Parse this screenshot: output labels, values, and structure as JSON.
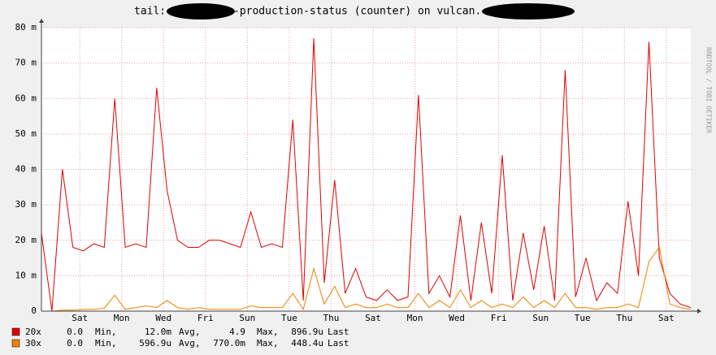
{
  "chart_data": {
    "type": "line",
    "title": [
      "tail:",
      "-production-status (counter) on vulcan."
    ],
    "watermark": "RRDTOOL / TOBI OETIKER",
    "x": [
      0,
      0.5,
      1,
      1.5,
      2,
      2.5,
      3,
      3.5,
      4,
      4.5,
      5,
      5.5,
      6,
      6.5,
      7,
      7.5,
      8,
      8.5,
      9,
      9.5,
      10,
      10.5,
      11,
      11.5,
      12,
      12.5,
      13,
      13.5,
      14,
      14.5,
      15,
      15.5,
      16,
      16.5,
      17,
      17.5,
      18,
      18.5,
      19,
      19.5,
      20,
      20.5,
      21,
      21.5,
      22,
      22.5,
      23,
      23.5,
      24,
      24.5,
      25,
      25.5,
      26,
      26.5,
      27,
      27.5,
      28,
      28.5,
      29,
      29.5,
      30,
      30.5,
      31
    ],
    "xlim": [
      0,
      31
    ],
    "xticks": [
      {
        "value": 1.83,
        "label": "Sat"
      },
      {
        "value": 3.83,
        "label": "Mon"
      },
      {
        "value": 5.83,
        "label": "Wed"
      },
      {
        "value": 7.83,
        "label": "Fri"
      },
      {
        "value": 9.83,
        "label": "Sun"
      },
      {
        "value": 11.83,
        "label": "Tue"
      },
      {
        "value": 13.83,
        "label": "Thu"
      },
      {
        "value": 15.83,
        "label": "Sat"
      },
      {
        "value": 17.83,
        "label": "Mon"
      },
      {
        "value": 19.83,
        "label": "Wed"
      },
      {
        "value": 21.83,
        "label": "Fri"
      },
      {
        "value": 23.83,
        "label": "Sun"
      },
      {
        "value": 25.83,
        "label": "Tue"
      },
      {
        "value": 27.83,
        "label": "Thu"
      },
      {
        "value": 29.83,
        "label": "Sat"
      }
    ],
    "ylim": [
      0,
      80
    ],
    "yticks": [
      0,
      {
        "value": 10,
        "label": "10 m"
      },
      {
        "value": 20,
        "label": "20 m"
      },
      {
        "value": 30,
        "label": "30 m"
      },
      {
        "value": 40,
        "label": "40 m"
      },
      {
        "value": 50,
        "label": "50 m"
      },
      {
        "value": 60,
        "label": "60 m"
      },
      {
        "value": 70,
        "label": "70 m"
      },
      {
        "value": 80,
        "label": "80 m"
      }
    ],
    "grid": true,
    "legend_labels": [
      "Min,",
      "Avg,",
      "Max,",
      "Last"
    ],
    "series": [
      {
        "name": "20x",
        "color": "#e00000",
        "values": [
          22,
          0,
          40,
          18,
          17,
          19,
          18,
          60,
          18,
          19,
          18,
          63,
          34,
          20,
          18,
          18,
          20,
          20,
          19,
          18,
          28,
          18,
          19,
          18,
          54,
          3,
          77,
          8,
          37,
          5,
          12,
          4,
          3,
          6,
          3,
          4,
          61,
          5,
          10,
          4,
          27,
          3,
          25,
          5,
          44,
          3,
          22,
          6,
          24,
          3,
          68,
          4,
          15,
          3,
          8,
          5,
          31,
          10,
          76,
          15,
          5,
          2,
          1
        ],
        "stats": [
          "0.0",
          "12.0m",
          "4.9",
          "896.9u"
        ]
      },
      {
        "name": "30x",
        "color": "#f08000",
        "values": [
          0,
          0,
          0.3,
          0.3,
          0.5,
          0.5,
          0.8,
          4.5,
          0.5,
          1,
          1.5,
          1,
          3,
          1,
          0.5,
          1,
          0.5,
          0.5,
          0.5,
          0.5,
          1.5,
          1,
          1,
          1,
          5,
          0.5,
          12,
          2,
          7,
          1,
          2,
          1,
          1,
          2,
          1,
          1,
          5,
          1,
          3,
          1,
          6,
          1,
          3,
          1,
          2,
          1,
          4,
          1,
          3,
          1,
          5,
          1,
          1,
          0.5,
          1,
          1,
          2,
          1,
          14,
          18,
          2,
          1,
          0.5
        ],
        "stats": [
          "0.0",
          "596.9u",
          "770.0m",
          "448.4u"
        ]
      }
    ]
  }
}
